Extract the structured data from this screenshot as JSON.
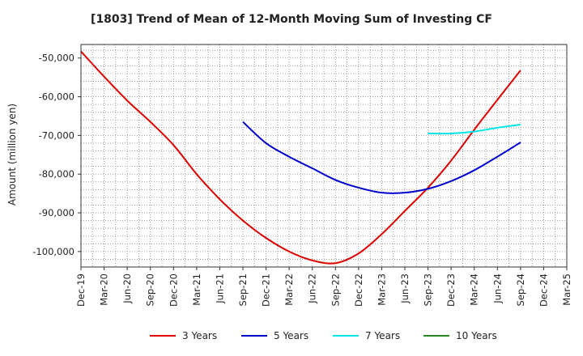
{
  "chart_data": {
    "type": "line",
    "title": "[1803]  Trend of Mean of 12-Month Moving Sum of Investing CF",
    "xlabel": "",
    "ylabel": "Amount (million yen)",
    "categories": [
      "Dec-19",
      "Mar-20",
      "Jun-20",
      "Sep-20",
      "Dec-20",
      "Mar-21",
      "Jun-21",
      "Sep-21",
      "Dec-21",
      "Mar-22",
      "Jun-22",
      "Sep-22",
      "Dec-22",
      "Mar-23",
      "Jun-23",
      "Sep-23",
      "Dec-23",
      "Mar-24",
      "Jun-24",
      "Sep-24",
      "Dec-24",
      "Mar-25"
    ],
    "yticks": [
      -50000,
      -60000,
      -70000,
      -80000,
      -90000,
      -100000
    ],
    "ytick_labels": [
      "-50,000",
      "-60,000",
      "-70,000",
      "-80,000",
      "-90,000",
      "-100,000"
    ],
    "ylim": [
      -104000,
      -46500
    ],
    "grid": true,
    "legend_position": "bottom",
    "series": [
      {
        "name": "3 Years",
        "color": "#dd0000",
        "values": [
          -48300,
          -54800,
          -61000,
          -66500,
          -72500,
          -80000,
          -86500,
          -92000,
          -96500,
          -100000,
          -102300,
          -103000,
          -100500,
          -95500,
          -89500,
          -83500,
          -76500,
          -68500,
          -60800,
          -53200,
          null,
          null
        ]
      },
      {
        "name": "5 Years",
        "color": "#0000cc",
        "values": [
          null,
          null,
          null,
          null,
          null,
          null,
          null,
          -66500,
          -72000,
          -75500,
          -78500,
          -81500,
          -83500,
          -84800,
          -84800,
          -83800,
          -81800,
          -79000,
          -75500,
          -71800,
          null,
          null
        ]
      },
      {
        "name": "7 Years",
        "color": "#00e5e5",
        "values": [
          null,
          null,
          null,
          null,
          null,
          null,
          null,
          null,
          null,
          null,
          null,
          null,
          null,
          null,
          null,
          -69500,
          -69500,
          -69000,
          -68000,
          -67200,
          null,
          null
        ]
      },
      {
        "name": "10 Years",
        "color": "#228822",
        "values": [
          null,
          null,
          null,
          null,
          null,
          null,
          null,
          null,
          null,
          null,
          null,
          null,
          null,
          null,
          null,
          null,
          null,
          null,
          null,
          null,
          null,
          null
        ]
      }
    ]
  }
}
